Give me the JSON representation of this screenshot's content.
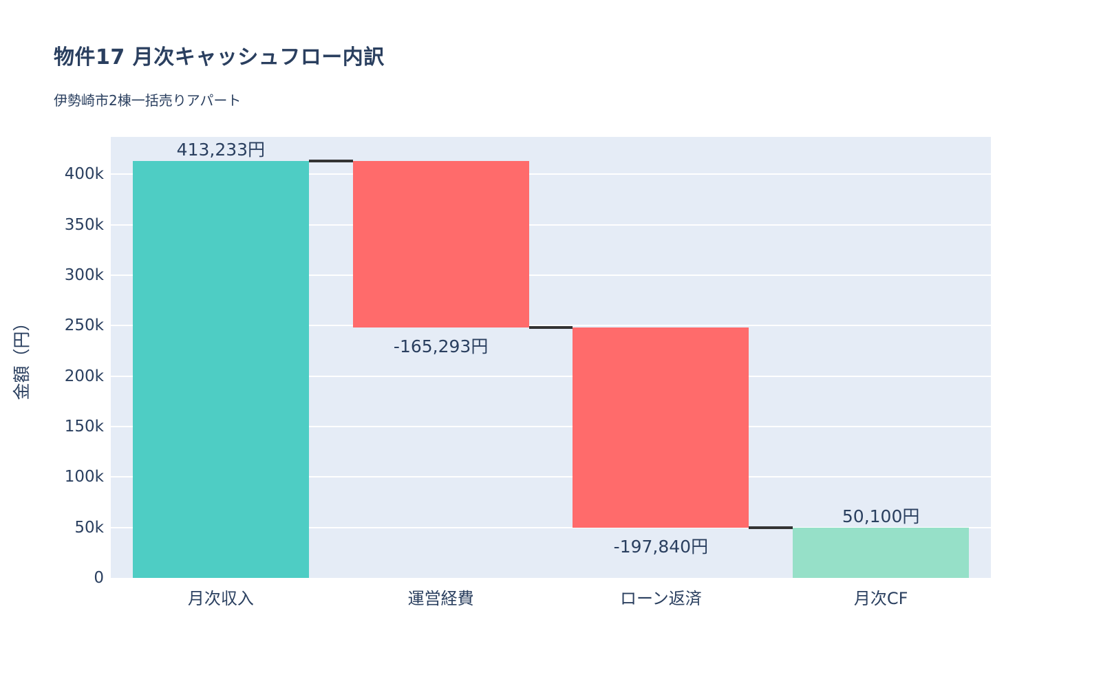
{
  "page": {
    "title": "物件17 月次キャッシュフロー内訳",
    "subtitle": "伊勢崎市2棟一括売りアパート"
  },
  "chart_data": {
    "type": "waterfall",
    "title": "物件17 月次キャッシュフロー内訳",
    "subtitle": "伊勢崎市2棟一括売りアパート",
    "xlabel": "",
    "ylabel": "金額（円）",
    "categories": [
      "月次収入",
      "運営経費",
      "ローン返済",
      "月次CF"
    ],
    "values": [
      413233,
      -165293,
      -197840,
      50100
    ],
    "measures": [
      "relative",
      "relative",
      "relative",
      "total"
    ],
    "cumulative_levels": [
      413233,
      247940,
      50100,
      50100
    ],
    "bar_labels": [
      "413,233円",
      "-165,293円",
      "-197,840円",
      "50,100円"
    ],
    "label_side": [
      "above",
      "below",
      "below",
      "above"
    ],
    "ylim": [
      0,
      437000
    ],
    "ytick_values": [
      0,
      50000,
      100000,
      150000,
      200000,
      250000,
      300000,
      350000,
      400000
    ],
    "ytick_labels": [
      "0",
      "50k",
      "100k",
      "150k",
      "200k",
      "250k",
      "300k",
      "350k",
      "400k"
    ],
    "grid": true,
    "legend": "none",
    "colors": {
      "increasing": "#4ecdc4",
      "decreasing": "#ff6b6b",
      "total": "#96e0c8",
      "connector": "#333333",
      "plot_background": "#e5ecf6",
      "gridline": "#ffffff",
      "text": "#2a3f5f"
    }
  }
}
